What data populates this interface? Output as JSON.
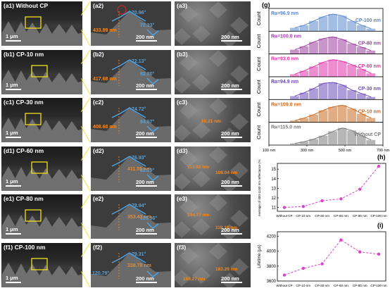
{
  "sem_rows": [
    {
      "a1": "(a1) Without CP",
      "a2": "(a2)",
      "a3": "(a3)",
      "angles": [
        "70.96°",
        "70.33°"
      ],
      "heights": [
        "433.89 nm"
      ]
    },
    {
      "a1": "(b1) CP-10 nm",
      "a2": "(b2)",
      "a3": "(b3)",
      "angles": [
        "72.13°",
        "82.80°"
      ],
      "heights": [
        "417.68 nm"
      ]
    },
    {
      "a1": "(c1) CP-30 nm",
      "a2": "(c2)",
      "a3": "(c3)",
      "angles": [
        "74.72°",
        "84.67°"
      ],
      "heights": [
        "408.68 nm"
      ],
      "sizes": [
        "80.21 nm"
      ]
    },
    {
      "a1": "(d1) CP-60 nm",
      "a2": "(d2)",
      "a3": "(d3)",
      "angles": [
        "76.93°",
        "82.39°"
      ],
      "heights": [
        "411.55 nm"
      ],
      "sizes": [
        "113.92 nm",
        "108.04 nm"
      ]
    },
    {
      "a1": "(e1) CP-80 nm",
      "a2": "(e2)",
      "a3": "(e3)",
      "angles": [
        "78.94°",
        "105.96°"
      ],
      "heights": [
        "353.43 nm"
      ],
      "sizes": [
        "144.77 nm",
        "118.10 nm"
      ]
    },
    {
      "a1": "(f1) CP-100 nm",
      "a2": "(f2)",
      "a3": "(f3)",
      "angles": [
        "79.31°",
        "120.79°"
      ],
      "heights": [
        "338.78 nm"
      ],
      "sizes": [
        "160.27 nm",
        "183.29 nm"
      ]
    }
  ],
  "scalebars": {
    "um": "1 μm",
    "nm": "200 nm"
  },
  "colors": {
    "angle": "#4aa3e6",
    "annot": "#f08a24",
    "highlight": "#f0e020",
    "circle": "#e02020"
  },
  "chart_g": {
    "label": "(g)",
    "ylabel": "Count",
    "xticks": [
      "100 nm",
      "300 nm",
      "500 nm",
      "700 nm"
    ],
    "xlim": [
      100,
      700
    ],
    "rows": [
      {
        "ra": "Ra=96.9 nm",
        "name": "CP-100 nm",
        "color": "#5a88cc",
        "values": [
          0.2,
          0.35,
          0.6,
          0.85,
          1.0,
          0.9,
          0.6,
          0.35,
          0.15
        ]
      },
      {
        "ra": "Ra=100.0 nm",
        "name": "CP-80 nm",
        "color": "#9a3ea0",
        "values": [
          0.25,
          0.45,
          0.7,
          0.9,
          1.0,
          0.85,
          0.6,
          0.4,
          0.2
        ]
      },
      {
        "ra": "Ra=93.0 nm",
        "name": "CP-60 nm",
        "color": "#e030a8",
        "values": [
          0.15,
          0.35,
          0.6,
          0.85,
          1.0,
          0.9,
          0.7,
          0.45,
          0.2
        ]
      },
      {
        "ra": "Ra=94.9 nm",
        "name": "CP-30 nm",
        "color": "#6a4ab8",
        "values": [
          0.2,
          0.4,
          0.65,
          0.95,
          1.0,
          0.85,
          0.55,
          0.35,
          0.15
        ]
      },
      {
        "ra": "Ra=109.0 nm",
        "name": "CP-10 nm",
        "color": "#c86a20",
        "values": [
          0.1,
          0.25,
          0.45,
          0.7,
          0.9,
          1.0,
          0.8,
          0.5,
          0.25
        ]
      },
      {
        "ra": "Ra=115.0 nm",
        "name": "Without CP",
        "color": "#7a7a7a",
        "values": [
          0.1,
          0.2,
          0.35,
          0.55,
          0.8,
          1.0,
          0.85,
          0.55,
          0.3
        ]
      }
    ]
  },
  "chart_data": [
    {
      "type": "line",
      "label": "(h)",
      "categories": [
        "Without CP",
        "CP-10 nm",
        "CP-30 nm",
        "CP-60 nm",
        "CP-80 nm",
        "CP-100 nm"
      ],
      "values": [
        11.0,
        11.1,
        11.7,
        11.9,
        12.9,
        15.3
      ],
      "ylabel": "Average of 400-1100 nm reflectance (%)",
      "yticks": [
        11,
        12,
        13,
        14,
        15
      ],
      "ylim": [
        10.6,
        15.6
      ]
    },
    {
      "type": "line",
      "label": "(i)",
      "categories": [
        "Without CP",
        "CP-10 nm",
        "CP-30 nm",
        "CP-60 nm",
        "CP-80 nm",
        "CP-100 nm"
      ],
      "values": [
        3680,
        3770,
        3830,
        4150,
        3990,
        3960
      ],
      "ylabel": "Lifetime (μs)",
      "yticks": [
        3600,
        3800,
        4000,
        4200
      ],
      "ylim": [
        3600,
        4260
      ]
    }
  ]
}
